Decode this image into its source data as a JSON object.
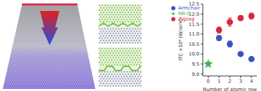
{
  "chart_data": {
    "type": "scatter",
    "x_label": "Number of atomic row",
    "y_label": "ITC ×10⁹ (W/m²K)",
    "xlim": [
      -0.5,
      4.5
    ],
    "xticks": [
      0,
      1,
      2,
      3,
      4
    ],
    "ylim": [
      8.9,
      12.5
    ],
    "yticks": [
      {
        "value": 9,
        "label": "9.0"
      },
      {
        "value": 9.5,
        "label": "9.5"
      },
      {
        "value": 10,
        "label": "10.0"
      },
      {
        "value": 10.5,
        "label": "10.5"
      },
      {
        "value": 11,
        "label": "11.0"
      },
      {
        "value": 11.5,
        "label": "11.5"
      },
      {
        "value": 12,
        "label": "12.0"
      },
      {
        "value": 12.5,
        "label": "12.5"
      }
    ],
    "legend": "upper left",
    "series": [
      {
        "name": "NB-C",
        "color": "#4caf50",
        "marker": "star",
        "x": [
          0
        ],
        "values": [
          9.5
        ],
        "errors": [
          0.1
        ]
      },
      {
        "name": "Zigzag",
        "color": "#d7263d",
        "marker": "circle",
        "x": [
          1,
          2,
          3,
          4
        ],
        "values": [
          11.2,
          11.6,
          11.8,
          11.9
        ],
        "errors": [
          0.15,
          0.2,
          0.12,
          0.15
        ]
      },
      {
        "name": "Armchair",
        "color": "#3a53c5",
        "marker": "circle",
        "x": [
          1,
          2,
          3,
          4
        ],
        "values": [
          10.8,
          10.5,
          10.0,
          9.75
        ],
        "errors": [
          0.12,
          0.15,
          0.08,
          0.06
        ]
      }
    ]
  }
}
